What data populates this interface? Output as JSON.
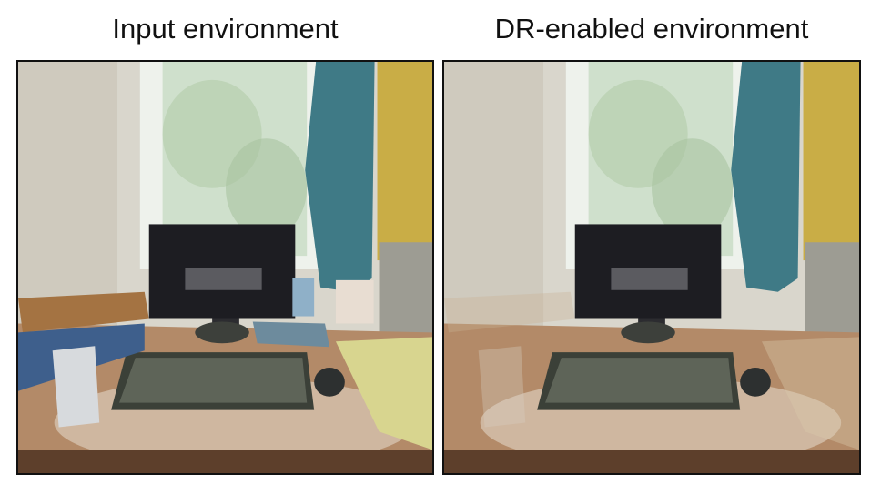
{
  "panels": [
    {
      "caption": "Input environment",
      "objects_visible": true
    },
    {
      "caption": "DR-enabled environment",
      "objects_visible": false
    }
  ],
  "colors": {
    "wall": "#d9d6cc",
    "window": "#dfe8dc",
    "curtain": "#3f7a86",
    "desk": "#b38a68",
    "monitor": "#1d1d22",
    "yellow_wall": "#c9ad46"
  }
}
